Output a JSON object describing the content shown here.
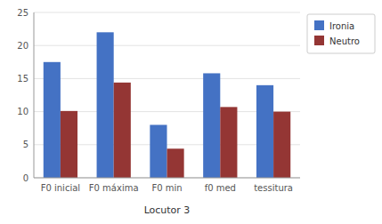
{
  "chart_data": {
    "type": "bar",
    "xlabel": "Locutor 3",
    "categories": [
      "F0 inicial",
      "F0 máxima",
      "F0 min",
      "f0 med",
      "tessitura"
    ],
    "series": [
      {
        "name": "Ironia",
        "color": "#4472C4",
        "values": [
          17.5,
          22.0,
          8.0,
          15.8,
          14.0
        ]
      },
      {
        "name": "Neutro",
        "color": "#943634",
        "values": [
          10.1,
          14.4,
          4.4,
          10.7,
          10.0
        ]
      }
    ],
    "ylim": [
      0,
      25
    ],
    "yticks": [
      0,
      5,
      10,
      15,
      20,
      25
    ],
    "grid": true,
    "legend": "right"
  }
}
